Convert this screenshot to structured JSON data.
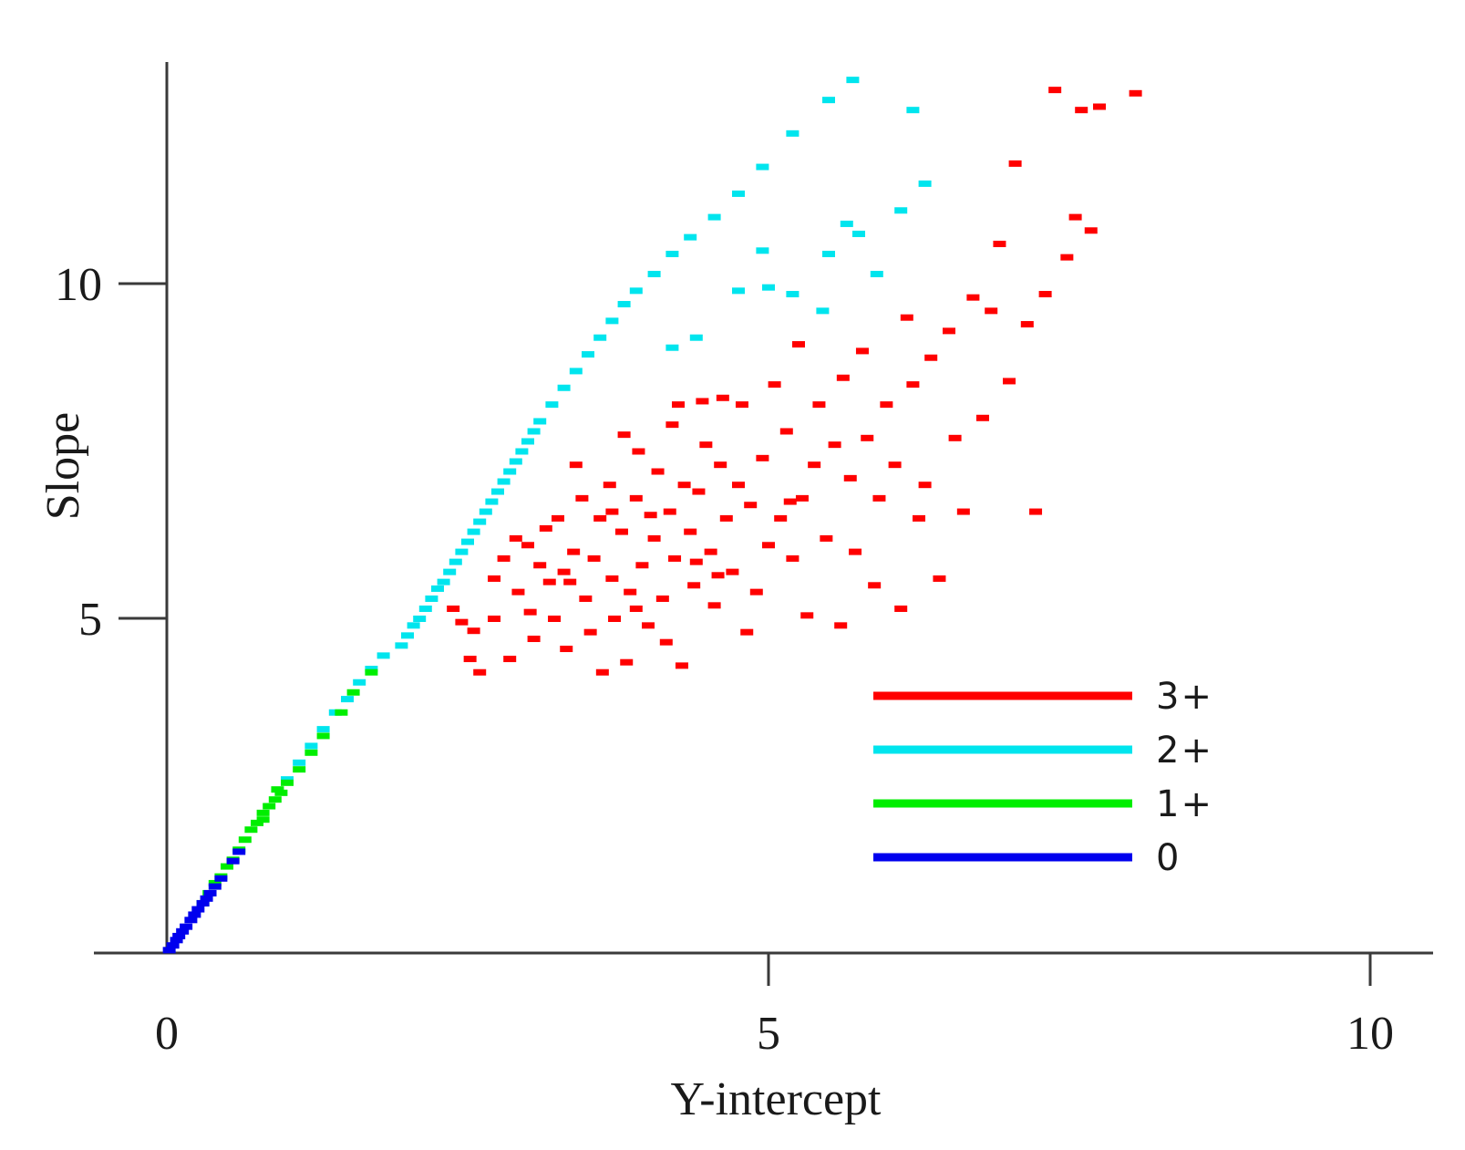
{
  "chart_data": {
    "type": "scatter",
    "title": "",
    "xlabel": "Y-intercept",
    "ylabel": "Slope",
    "xlim": [
      0,
      10.5
    ],
    "ylim": [
      0,
      13.4
    ],
    "x_ticks": [
      0,
      5,
      10
    ],
    "x_tick_labels": [
      "0",
      "5",
      "10"
    ],
    "y_ticks": [
      5,
      10
    ],
    "y_tick_labels": [
      "5",
      "10"
    ],
    "grid": false,
    "legend_position": "lower-right",
    "series": [
      {
        "name": "3+",
        "color": "#ff0000",
        "points": [
          [
            2.38,
            5.15
          ],
          [
            2.45,
            4.95
          ],
          [
            2.52,
            4.4
          ],
          [
            2.55,
            4.82
          ],
          [
            2.6,
            4.2
          ],
          [
            2.72,
            5.6
          ],
          [
            2.72,
            5.0
          ],
          [
            2.8,
            5.9
          ],
          [
            2.85,
            4.4
          ],
          [
            2.92,
            5.4
          ],
          [
            3.0,
            6.1
          ],
          [
            3.02,
            5.1
          ],
          [
            3.05,
            4.7
          ],
          [
            3.1,
            5.8
          ],
          [
            3.15,
            6.35
          ],
          [
            3.18,
            5.55
          ],
          [
            3.22,
            5.0
          ],
          [
            3.25,
            6.5
          ],
          [
            3.3,
            5.7
          ],
          [
            3.32,
            4.55
          ],
          [
            3.38,
            6.0
          ],
          [
            3.4,
            7.3
          ],
          [
            3.45,
            6.8
          ],
          [
            3.48,
            5.3
          ],
          [
            3.52,
            4.8
          ],
          [
            3.55,
            5.9
          ],
          [
            3.6,
            6.5
          ],
          [
            3.62,
            4.2
          ],
          [
            3.68,
            7.0
          ],
          [
            3.7,
            5.6
          ],
          [
            3.72,
            5.0
          ],
          [
            3.78,
            6.3
          ],
          [
            3.8,
            7.75
          ],
          [
            3.82,
            4.35
          ],
          [
            3.85,
            5.4
          ],
          [
            3.9,
            6.8
          ],
          [
            3.92,
            7.5
          ],
          [
            3.95,
            5.8
          ],
          [
            4.0,
            4.9
          ],
          [
            4.05,
            6.2
          ],
          [
            4.08,
            7.2
          ],
          [
            4.12,
            5.3
          ],
          [
            4.15,
            4.65
          ],
          [
            4.18,
            6.6
          ],
          [
            4.2,
            7.9
          ],
          [
            4.22,
            5.9
          ],
          [
            4.25,
            8.2
          ],
          [
            4.28,
            4.3
          ],
          [
            4.3,
            7.0
          ],
          [
            4.35,
            6.3
          ],
          [
            4.38,
            5.5
          ],
          [
            4.42,
            6.9
          ],
          [
            4.45,
            8.25
          ],
          [
            4.48,
            7.6
          ],
          [
            4.52,
            6.0
          ],
          [
            4.55,
            5.2
          ],
          [
            4.6,
            7.3
          ],
          [
            4.62,
            8.3
          ],
          [
            4.65,
            6.5
          ],
          [
            4.7,
            5.7
          ],
          [
            4.75,
            7.0
          ],
          [
            4.78,
            8.2
          ],
          [
            4.82,
            4.8
          ],
          [
            4.85,
            6.7
          ],
          [
            4.9,
            5.4
          ],
          [
            4.95,
            7.4
          ],
          [
            5.0,
            6.1
          ],
          [
            5.05,
            8.5
          ],
          [
            5.1,
            6.5
          ],
          [
            5.15,
            7.8
          ],
          [
            5.2,
            5.9
          ],
          [
            5.25,
            9.1
          ],
          [
            5.28,
            6.8
          ],
          [
            5.32,
            5.05
          ],
          [
            5.38,
            7.3
          ],
          [
            5.42,
            8.2
          ],
          [
            5.48,
            6.2
          ],
          [
            5.55,
            7.6
          ],
          [
            5.6,
            4.9
          ],
          [
            5.62,
            8.6
          ],
          [
            5.68,
            7.1
          ],
          [
            5.72,
            6.0
          ],
          [
            5.78,
            9.0
          ],
          [
            5.82,
            7.7
          ],
          [
            5.88,
            5.5
          ],
          [
            5.92,
            6.8
          ],
          [
            5.98,
            8.2
          ],
          [
            6.05,
            7.3
          ],
          [
            6.1,
            5.15
          ],
          [
            6.15,
            9.5
          ],
          [
            6.2,
            8.5
          ],
          [
            6.25,
            6.5
          ],
          [
            6.3,
            7.0
          ],
          [
            6.35,
            8.9
          ],
          [
            6.42,
            5.6
          ],
          [
            6.5,
            9.3
          ],
          [
            6.55,
            7.7
          ],
          [
            6.62,
            6.6
          ],
          [
            6.7,
            9.8
          ],
          [
            6.78,
            8.0
          ],
          [
            6.85,
            9.6
          ],
          [
            6.92,
            10.6
          ],
          [
            7.0,
            8.55
          ],
          [
            7.05,
            11.8
          ],
          [
            7.15,
            9.4
          ],
          [
            7.22,
            6.6
          ],
          [
            7.3,
            9.85
          ],
          [
            7.38,
            12.9
          ],
          [
            7.48,
            10.4
          ],
          [
            7.55,
            11.0
          ],
          [
            7.6,
            12.6
          ],
          [
            7.68,
            10.8
          ],
          [
            7.75,
            12.65
          ],
          [
            8.05,
            12.85
          ],
          [
            4.58,
            5.65
          ],
          [
            3.9,
            5.15
          ],
          [
            2.9,
            6.2
          ],
          [
            3.35,
            5.55
          ],
          [
            4.4,
            5.85
          ],
          [
            5.18,
            6.75
          ],
          [
            4.02,
            6.55
          ],
          [
            3.7,
            6.6
          ]
        ]
      },
      {
        "name": "2+",
        "color": "#00e5ee",
        "points": [
          [
            1.95,
            4.6
          ],
          [
            2.0,
            4.75
          ],
          [
            2.05,
            4.9
          ],
          [
            2.1,
            5.0
          ],
          [
            2.15,
            5.15
          ],
          [
            2.2,
            5.3
          ],
          [
            2.25,
            5.45
          ],
          [
            2.3,
            5.55
          ],
          [
            2.35,
            5.7
          ],
          [
            2.4,
            5.85
          ],
          [
            2.45,
            6.0
          ],
          [
            2.5,
            6.15
          ],
          [
            2.55,
            6.3
          ],
          [
            2.6,
            6.45
          ],
          [
            2.65,
            6.6
          ],
          [
            2.7,
            6.75
          ],
          [
            2.75,
            6.9
          ],
          [
            2.8,
            7.05
          ],
          [
            2.85,
            7.2
          ],
          [
            2.9,
            7.35
          ],
          [
            2.95,
            7.5
          ],
          [
            3.0,
            7.65
          ],
          [
            3.05,
            7.8
          ],
          [
            3.1,
            7.95
          ],
          [
            3.2,
            8.2
          ],
          [
            3.3,
            8.45
          ],
          [
            3.4,
            8.7
          ],
          [
            3.5,
            8.95
          ],
          [
            3.6,
            9.2
          ],
          [
            3.7,
            9.45
          ],
          [
            3.8,
            9.7
          ],
          [
            3.9,
            9.9
          ],
          [
            4.05,
            10.15
          ],
          [
            4.2,
            10.45
          ],
          [
            4.35,
            10.7
          ],
          [
            4.55,
            11.0
          ],
          [
            4.75,
            11.35
          ],
          [
            4.95,
            11.75
          ],
          [
            5.2,
            12.25
          ],
          [
            5.5,
            12.75
          ],
          [
            5.7,
            13.05
          ],
          [
            6.2,
            12.6
          ],
          [
            4.4,
            9.2
          ],
          [
            4.75,
            9.9
          ],
          [
            4.95,
            10.5
          ],
          [
            5.2,
            9.85
          ],
          [
            5.5,
            10.45
          ],
          [
            5.75,
            10.75
          ],
          [
            5.9,
            10.15
          ],
          [
            6.1,
            11.1
          ],
          [
            5.45,
            9.6
          ],
          [
            5.65,
            10.9
          ],
          [
            6.3,
            11.5
          ],
          [
            4.2,
            9.05
          ],
          [
            5.0,
            9.95
          ],
          [
            1.5,
            3.8
          ],
          [
            1.6,
            4.05
          ],
          [
            1.7,
            4.25
          ],
          [
            1.8,
            4.45
          ],
          [
            1.4,
            3.6
          ],
          [
            1.3,
            3.35
          ],
          [
            1.2,
            3.1
          ],
          [
            1.1,
            2.85
          ],
          [
            1.0,
            2.6
          ]
        ]
      },
      {
        "name": "1+",
        "color": "#00ee00",
        "points": [
          [
            0.3,
            0.75
          ],
          [
            0.35,
            0.9
          ],
          [
            0.4,
            1.05
          ],
          [
            0.45,
            1.15
          ],
          [
            0.5,
            1.3
          ],
          [
            0.55,
            1.4
          ],
          [
            0.6,
            1.55
          ],
          [
            0.65,
            1.7
          ],
          [
            0.7,
            1.85
          ],
          [
            0.75,
            1.95
          ],
          [
            0.8,
            2.1
          ],
          [
            0.85,
            2.2
          ],
          [
            0.9,
            2.3
          ],
          [
            0.95,
            2.4
          ],
          [
            1.0,
            2.55
          ],
          [
            1.1,
            2.75
          ],
          [
            1.2,
            3.0
          ],
          [
            1.3,
            3.25
          ],
          [
            1.45,
            3.6
          ],
          [
            1.55,
            3.9
          ],
          [
            1.7,
            4.2
          ],
          [
            0.92,
            2.45
          ],
          [
            0.8,
            2.0
          ]
        ]
      },
      {
        "name": "0",
        "color": "#0000ee",
        "points": [
          [
            0.02,
            0.05
          ],
          [
            0.05,
            0.12
          ],
          [
            0.08,
            0.2
          ],
          [
            0.1,
            0.26
          ],
          [
            0.13,
            0.33
          ],
          [
            0.16,
            0.4
          ],
          [
            0.2,
            0.5
          ],
          [
            0.23,
            0.58
          ],
          [
            0.26,
            0.66
          ],
          [
            0.3,
            0.75
          ],
          [
            0.33,
            0.82
          ],
          [
            0.36,
            0.9
          ],
          [
            0.4,
            1.0
          ],
          [
            0.45,
            1.12
          ],
          [
            0.55,
            1.38
          ],
          [
            0.6,
            1.52
          ]
        ]
      }
    ]
  }
}
